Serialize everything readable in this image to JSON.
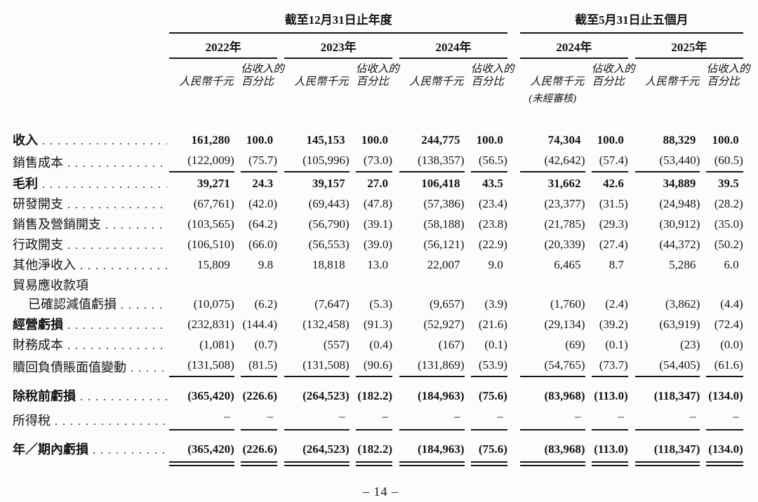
{
  "document": {
    "header": {
      "group1_title": "截至12月31日止年度",
      "group2_title": "截至5月31日止五個月",
      "years": [
        "2022年",
        "2023年",
        "2024年",
        "2024年",
        "2025年"
      ],
      "unit_label": "人民幣千元",
      "pct_label_line1": "佔收入的",
      "pct_label_line2": "百分比",
      "unaudited_note": "(未經審核)"
    },
    "rows": [
      {
        "label": "收入",
        "values": [
          "161,280",
          "100.0",
          "145,153",
          "100.0",
          "244,775",
          "100.0",
          "74,304",
          "100.0",
          "88,329",
          "100.0"
        ]
      },
      {
        "label": "銷售成本",
        "values": [
          "(122,009)",
          "(75.7)",
          "(105,996)",
          "(73.0)",
          "(138,357)",
          "(56.5)",
          "(42,642)",
          "(57.4)",
          "(53,440)",
          "(60.5)"
        ]
      },
      {
        "label": "毛利",
        "values": [
          "39,271",
          "24.3",
          "39,157",
          "27.0",
          "106,418",
          "43.5",
          "31,662",
          "42.6",
          "34,889",
          "39.5"
        ]
      },
      {
        "label": "研發開支",
        "values": [
          "(67,761)",
          "(42.0)",
          "(69,443)",
          "(47.8)",
          "(57,386)",
          "(23.4)",
          "(23,377)",
          "(31.5)",
          "(24,948)",
          "(28.2)"
        ]
      },
      {
        "label": "銷售及營銷開支",
        "values": [
          "(103,565)",
          "(64.2)",
          "(56,790)",
          "(39.1)",
          "(58,188)",
          "(23.8)",
          "(21,785)",
          "(29.3)",
          "(30,912)",
          "(35.0)"
        ]
      },
      {
        "label": "行政開支",
        "values": [
          "(106,510)",
          "(66.0)",
          "(56,553)",
          "(39.0)",
          "(56,121)",
          "(22.9)",
          "(20,339)",
          "(27.4)",
          "(44,372)",
          "(50.2)"
        ]
      },
      {
        "label": "其他淨收入",
        "values": [
          "15,809",
          "9.8",
          "18,818",
          "13.0",
          "22,007",
          "9.0",
          "6,465",
          "8.7",
          "5,286",
          "6.0"
        ]
      },
      {
        "label": "貿易應收款項",
        "values": []
      },
      {
        "label": "已確認減值虧損",
        "values": [
          "(10,075)",
          "(6.2)",
          "(7,647)",
          "(5.3)",
          "(9,657)",
          "(3.9)",
          "(1,760)",
          "(2.4)",
          "(3,862)",
          "(4.4)"
        ]
      },
      {
        "label": "經營虧損",
        "values": [
          "(232,831)",
          "(144.4)",
          "(132,458)",
          "(91.3)",
          "(52,927)",
          "(21.6)",
          "(29,134)",
          "(39.2)",
          "(63,919)",
          "(72.4)"
        ]
      },
      {
        "label": "財務成本",
        "values": [
          "(1,081)",
          "(0.7)",
          "(557)",
          "(0.4)",
          "(167)",
          "(0.1)",
          "(69)",
          "(0.1)",
          "(23)",
          "(0.0)"
        ]
      },
      {
        "label": "贖回負債賬面值變動",
        "values": [
          "(131,508)",
          "(81.5)",
          "(131,508)",
          "(90.6)",
          "(131,869)",
          "(53.9)",
          "(54,765)",
          "(73.7)",
          "(54,405)",
          "(61.6)"
        ]
      },
      {
        "label": "除稅前虧損",
        "values": [
          "(365,420)",
          "(226.6)",
          "(264,523)",
          "(182.2)",
          "(184,963)",
          "(75.6)",
          "(83,968)",
          "(113.0)",
          "(118,347)",
          "(134.0)"
        ]
      },
      {
        "label": "所得稅",
        "values": [
          "–",
          "–",
          "–",
          "–",
          "–",
          "–",
          "–",
          "–",
          "–",
          "–"
        ]
      },
      {
        "label": "年／期內虧損",
        "values": [
          "(365,420)",
          "(226.6)",
          "(264,523)",
          "(182.2)",
          "(184,963)",
          "(75.6)",
          "(83,968)",
          "(113.0)",
          "(118,347)",
          "(134.0)"
        ]
      }
    ],
    "page_number": "– 14 –"
  }
}
